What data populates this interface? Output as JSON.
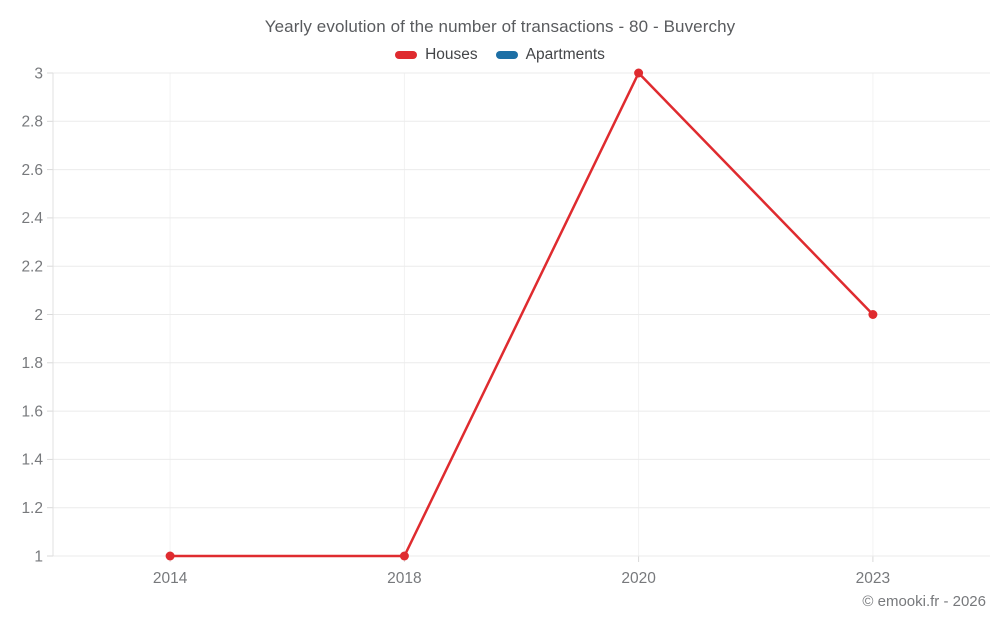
{
  "title": "Yearly evolution of the number of transactions - 80 - Buverchy",
  "footer": "© emooki.fr - 2026",
  "legend": {
    "items": [
      {
        "label": "Houses",
        "color": "#df2b2f"
      },
      {
        "label": "Apartments",
        "color": "#1d6fa5"
      }
    ]
  },
  "colors": {
    "series_houses": "#df2b2f",
    "series_apartments": "#1d6fa5",
    "grid_horizontal": "#ebebeb",
    "grid_vertical": "#f2f2f2",
    "axis_line": "#e0e0e0",
    "tick_mark": "#d9d9d9",
    "tick_label": "#77797c",
    "title_text": "#595b5e",
    "background": "#ffffff"
  },
  "chart_data": {
    "type": "line",
    "title": "Yearly evolution of the number of transactions - 80 - Buverchy",
    "categories": [
      "2014",
      "2018",
      "2020",
      "2023"
    ],
    "series": [
      {
        "name": "Houses",
        "color": "#df2b2f",
        "values": [
          1,
          1,
          3,
          2
        ]
      },
      {
        "name": "Apartments",
        "color": "#1d6fa5",
        "values": []
      }
    ],
    "xlabel": "",
    "ylabel": "",
    "ylim": [
      1,
      3
    ],
    "ytick_step": 0.2,
    "ytick_labels": [
      "1",
      "1.2",
      "1.4",
      "1.6",
      "1.8",
      "2",
      "2.2",
      "2.4",
      "2.6",
      "2.8",
      "3"
    ],
    "grid": true,
    "legend_position": "top",
    "point_radius": 4.5,
    "line_width": 2.5
  }
}
